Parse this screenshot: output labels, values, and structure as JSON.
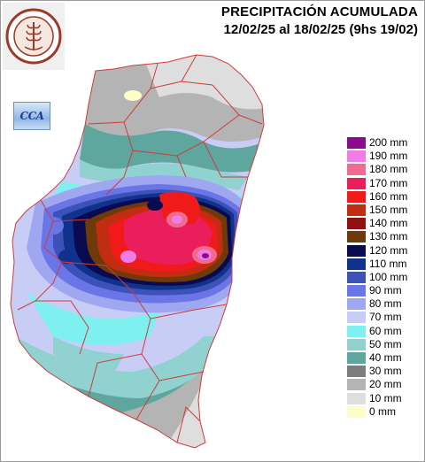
{
  "title": {
    "line1": "PRECIPITACIÓN ACUMULADA",
    "line2": "12/02/25 al 18/02/25 (9hs 19/02)"
  },
  "logo": {
    "text": "BOLSA DE CEREALES DE ENTRE RÍOS",
    "year": "1979",
    "icon": "wheat-seal-icon"
  },
  "badge": {
    "label": "CCA",
    "icon": "cloud-icon"
  },
  "legend": [
    {
      "label": "200 mm",
      "color": "#8c0a8c"
    },
    {
      "label": "190 mm",
      "color": "#f07ce6"
    },
    {
      "label": "180 mm",
      "color": "#f06b8f"
    },
    {
      "label": "170 mm",
      "color": "#ea1e5a"
    },
    {
      "label": "160 mm",
      "color": "#f01a1a"
    },
    {
      "label": "150 mm",
      "color": "#c22d12"
    },
    {
      "label": "140 mm",
      "color": "#8e1010"
    },
    {
      "label": "130 mm",
      "color": "#6e3a0a"
    },
    {
      "label": "120 mm",
      "color": "#0a0a50"
    },
    {
      "label": "110 mm",
      "color": "#10328c"
    },
    {
      "label": "100 mm",
      "color": "#3d52b8"
    },
    {
      "label": "90 mm",
      "color": "#6a75e8"
    },
    {
      "label": "80 mm",
      "color": "#9ea7f0"
    },
    {
      "label": "70 mm",
      "color": "#c8cdf6"
    },
    {
      "label": "60 mm",
      "color": "#7ef0f0"
    },
    {
      "label": "50 mm",
      "color": "#8fd2cf"
    },
    {
      "label": "40 mm",
      "color": "#5fa69e"
    },
    {
      "label": "30 mm",
      "color": "#7d7d7d"
    },
    {
      "label": "20 mm",
      "color": "#b4b4b4"
    },
    {
      "label": "10 mm",
      "color": "#dedede"
    },
    {
      "label": "0 mm",
      "color": "#fdfdc8"
    }
  ]
}
